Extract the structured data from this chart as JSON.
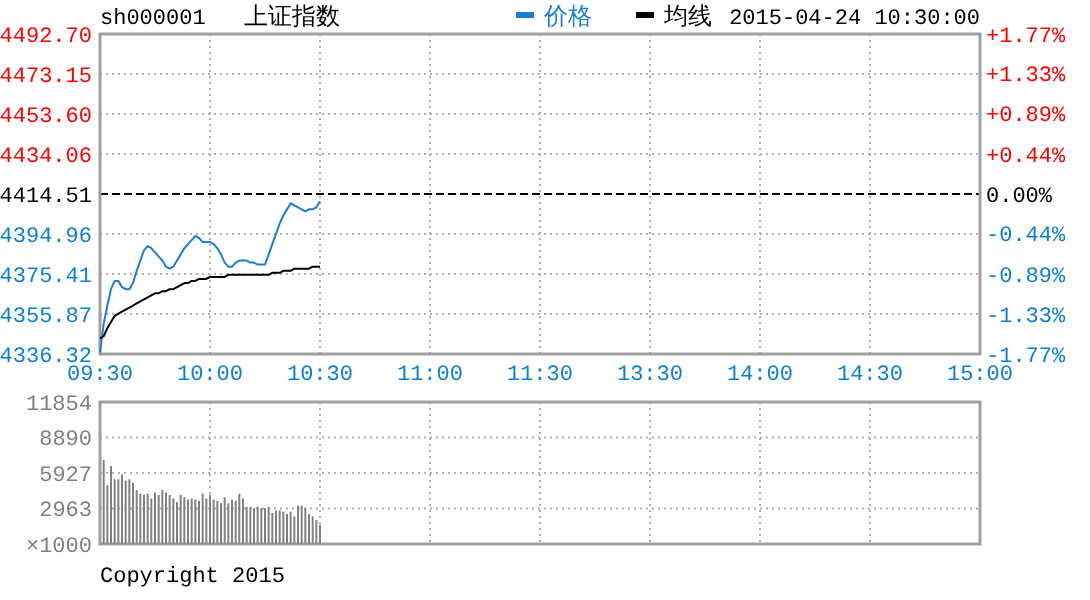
{
  "chart_data": [
    {
      "type": "line",
      "title": "上证指数",
      "subtitle": "sh000001",
      "annotations": [
        "2015-04-24 10:30:00"
      ],
      "legend": "top",
      "grid": true,
      "categories": [
        "09:30",
        null,
        null,
        null,
        null,
        null,
        null,
        null,
        null,
        null,
        null,
        null,
        null,
        null,
        null,
        null,
        null,
        null,
        null,
        null,
        null,
        null,
        null,
        null,
        null,
        null,
        null,
        null,
        null,
        null,
        "10:00",
        null,
        null,
        null,
        null,
        null,
        null,
        null,
        null,
        null,
        null,
        null,
        null,
        null,
        null,
        null,
        null,
        null,
        null,
        null,
        null,
        null,
        null,
        null,
        null,
        null,
        null,
        null,
        null,
        null,
        "10:30",
        null,
        null,
        null,
        null,
        null,
        null,
        null,
        null,
        null,
        null,
        null,
        null,
        null,
        null,
        null,
        null,
        null,
        null,
        null,
        null,
        null,
        null,
        null,
        null,
        null,
        null,
        null,
        null,
        null,
        "11:00",
        null,
        null,
        null,
        null,
        null,
        null,
        null,
        null,
        null,
        null,
        null,
        null,
        null,
        null,
        null,
        null,
        null,
        null,
        null,
        null,
        null,
        null,
        null,
        null,
        null,
        null,
        null,
        null,
        null,
        "11:30",
        null,
        null,
        null,
        null,
        null,
        null,
        null,
        null,
        null,
        null,
        null,
        null,
        null,
        null,
        null,
        null,
        null,
        null,
        null,
        null,
        null,
        null,
        null,
        null,
        null,
        null,
        null,
        null,
        null,
        "13:30",
        null,
        null,
        null,
        null,
        null,
        null,
        null,
        null,
        null,
        null,
        null,
        null,
        null,
        null,
        null,
        null,
        null,
        null,
        null,
        null,
        null,
        null,
        null,
        null,
        null,
        null,
        null,
        null,
        null,
        "14:00",
        null,
        null,
        null,
        null,
        null,
        null,
        null,
        null,
        null,
        null,
        null,
        null,
        null,
        null,
        null,
        null,
        null,
        null,
        null,
        null,
        null,
        null,
        null,
        null,
        null,
        null,
        null,
        null,
        null,
        "14:30",
        null,
        null,
        null,
        null,
        null,
        null,
        null,
        null,
        null,
        null,
        null,
        null,
        null,
        null,
        null,
        null,
        null,
        null,
        null,
        null,
        null,
        null,
        null,
        null,
        null,
        null,
        null,
        null,
        null,
        "15:00"
      ],
      "ylim": [
        4336.32,
        4492.7
      ],
      "yticks": [
        4336.32,
        4355.87,
        4375.41,
        4394.96,
        {
          "value": 4414.51,
          "label": "4414.51"
        },
        {
          "value": 4434.06,
          "label": "4434.06"
        },
        {
          "value": 4453.6,
          "label": "4453.60"
        },
        4473.15,
        {
          "value": 4492.7,
          "label": "4492.70"
        }
      ],
      "y2lim": [
        -1.77,
        1.77
      ],
      "y2ticks": [
        {
          "value": -1.77,
          "label": "-1.77%"
        },
        {
          "value": -1.33,
          "label": "-1.33%"
        },
        {
          "value": -0.89,
          "label": "-0.89%"
        },
        {
          "value": -0.44,
          "label": "-0.44%"
        },
        {
          "value": 0,
          "label": "0.00%"
        },
        {
          "value": 0.44,
          "label": "+0.44%"
        },
        {
          "value": 0.89,
          "label": "+0.89%"
        },
        {
          "value": 1.33,
          "label": "+1.33%"
        },
        {
          "value": 1.77,
          "label": "+1.77%"
        }
      ],
      "ref_lines": [
        {
          "axis": "y",
          "value": 4414.51,
          "color": "#000000",
          "line_style": "dashed"
        }
      ],
      "series": [
        {
          "name": "价格",
          "color": "#1a7fd0",
          "values": [
            4337,
            4351,
            4360,
            4368,
            4372,
            4372,
            4369,
            4368,
            4368,
            4371,
            4377,
            4382,
            4387,
            4389,
            4388,
            4386,
            4384,
            4382,
            4379,
            4378,
            4379,
            4382,
            4385,
            4388,
            4390,
            4392,
            4394,
            4393,
            4391,
            4391,
            4391,
            4390,
            4388,
            4385,
            4381,
            4379,
            4379,
            4381,
            4382,
            4382,
            4382,
            4381,
            4381,
            4380,
            4380,
            4380,
            4385,
            4390,
            4395,
            4400,
            4404,
            4407,
            4410,
            4409,
            4408,
            4407,
            4406,
            4407,
            4407,
            4408,
            4411,
            null,
            null,
            null,
            null,
            null,
            null,
            null,
            null,
            null,
            null,
            null,
            null,
            null,
            null,
            null,
            null,
            null,
            null,
            null,
            null,
            null,
            null,
            null,
            null,
            null,
            null,
            null,
            null,
            null,
            null,
            null,
            null,
            null,
            null,
            null,
            null,
            null,
            null,
            null,
            null,
            null,
            null,
            null,
            null,
            null,
            null,
            null,
            null,
            null,
            null,
            null,
            null,
            null,
            null,
            null,
            null,
            null,
            null,
            null,
            null,
            null,
            null,
            null,
            null,
            null,
            null,
            null,
            null,
            null,
            null,
            null,
            null,
            null,
            null,
            null,
            null,
            null,
            null,
            null,
            null,
            null,
            null,
            null,
            null,
            null,
            null,
            null,
            null,
            null,
            null,
            null,
            null,
            null,
            null,
            null,
            null,
            null,
            null,
            null,
            null,
            null,
            null,
            null,
            null,
            null,
            null,
            null,
            null,
            null,
            null,
            null,
            null,
            null,
            null,
            null,
            null,
            null,
            null,
            null,
            null,
            null,
            null,
            null,
            null,
            null,
            null,
            null,
            null,
            null,
            null,
            null,
            null,
            null,
            null,
            null,
            null,
            null,
            null,
            null,
            null,
            null,
            null,
            null,
            null,
            null,
            null,
            null,
            null,
            null,
            null,
            null,
            null,
            null,
            null,
            null,
            null,
            null,
            null,
            null,
            null,
            null,
            null,
            null,
            null,
            null,
            null,
            null,
            null,
            null,
            null,
            null,
            null,
            null,
            null,
            null,
            null,
            null,
            null,
            null,
            null
          ]
        },
        {
          "name": "均线",
          "color": "#000000",
          "values": [
            4344,
            4345,
            4349,
            4352,
            4355,
            4356,
            4357,
            4358,
            4359,
            4360,
            4361,
            4362,
            4363,
            4364,
            4365,
            4366,
            4366,
            4367,
            4367,
            4368,
            4368,
            4369,
            4370,
            4371,
            4371,
            4372,
            4372,
            4373,
            4373,
            4373,
            4374,
            4374,
            4374,
            4374,
            4374,
            4375,
            4375,
            4375,
            4375,
            4375,
            4375,
            4375,
            4375,
            4375,
            4375,
            4375,
            4375,
            4376,
            4376,
            4376,
            4377,
            4377,
            4377,
            4378,
            4378,
            4378,
            4378,
            4378,
            4379,
            4379,
            4379,
            null,
            null,
            null,
            null,
            null,
            null,
            null,
            null,
            null,
            null,
            null,
            null,
            null,
            null,
            null,
            null,
            null,
            null,
            null,
            null,
            null,
            null,
            null,
            null,
            null,
            null,
            null,
            null,
            null,
            null,
            null,
            null,
            null,
            null,
            null,
            null,
            null,
            null,
            null,
            null,
            null,
            null,
            null,
            null,
            null,
            null,
            null,
            null,
            null,
            null,
            null,
            null,
            null,
            null,
            null,
            null,
            null,
            null,
            null,
            null,
            null,
            null,
            null,
            null,
            null,
            null,
            null,
            null,
            null,
            null,
            null,
            null,
            null,
            null,
            null,
            null,
            null,
            null,
            null,
            null,
            null,
            null,
            null,
            null,
            null,
            null,
            null,
            null,
            null,
            null,
            null,
            null,
            null,
            null,
            null,
            null,
            null,
            null,
            null,
            null,
            null,
            null,
            null,
            null,
            null,
            null,
            null,
            null,
            null,
            null,
            null,
            null,
            null,
            null,
            null,
            null,
            null,
            null,
            null,
            null,
            null,
            null,
            null,
            null,
            null,
            null,
            null,
            null,
            null,
            null,
            null,
            null,
            null,
            null,
            null,
            null,
            null,
            null,
            null,
            null,
            null,
            null,
            null,
            null,
            null,
            null,
            null,
            null,
            null,
            null,
            null,
            null,
            null,
            null,
            null,
            null,
            null,
            null,
            null,
            null,
            null,
            null,
            null,
            null,
            null,
            null,
            null,
            null,
            null,
            null,
            null,
            null,
            null,
            null,
            null,
            null,
            null,
            null,
            null,
            null
          ]
        }
      ]
    },
    {
      "type": "bar",
      "grid": true,
      "tick_labels": "y",
      "ylabel": "×1000",
      "annotations": [
        "Copyright 2015"
      ],
      "categories": [
        null,
        null,
        null,
        null,
        null,
        null,
        null,
        null,
        null,
        null,
        null,
        null,
        null,
        null,
        null,
        null,
        null,
        null,
        null,
        null,
        null,
        null,
        null,
        null,
        null,
        null,
        null,
        null,
        null,
        null,
        null,
        null,
        null,
        null,
        null,
        null,
        null,
        null,
        null,
        null,
        null,
        null,
        null,
        null,
        null,
        null,
        null,
        null,
        null,
        null,
        null,
        null,
        null,
        null,
        null,
        null,
        null,
        null,
        null,
        null,
        null,
        null,
        null,
        null,
        null,
        null,
        null,
        null,
        null,
        null,
        null,
        null,
        null,
        null,
        null,
        null,
        null,
        null,
        null,
        null,
        null,
        null,
        null,
        null,
        null,
        null,
        null,
        null,
        null,
        null,
        null,
        null,
        null,
        null,
        null,
        null,
        null,
        null,
        null,
        null,
        null,
        null,
        null,
        null,
        null,
        null,
        null,
        null,
        null,
        null,
        null,
        null,
        null,
        null,
        null,
        null,
        null,
        null,
        null,
        null,
        null,
        null,
        null,
        null,
        null,
        null,
        null,
        null,
        null,
        null,
        null,
        null,
        null,
        null,
        null,
        null,
        null,
        null,
        null,
        null,
        null,
        null,
        null,
        null,
        null,
        null,
        null,
        null,
        null,
        null,
        null,
        null,
        null,
        null,
        null,
        null,
        null,
        null,
        null,
        null,
        null,
        null,
        null,
        null,
        null,
        null,
        null,
        null,
        null,
        null,
        null,
        null,
        null,
        null,
        null,
        null,
        null,
        null,
        null,
        null,
        null,
        null,
        null,
        null,
        null,
        null,
        null,
        null,
        null,
        null,
        null,
        null,
        null,
        null,
        null,
        null,
        null,
        null,
        null,
        null,
        null,
        null,
        null,
        null,
        null,
        null,
        null,
        null,
        null,
        null,
        null,
        null,
        null,
        null,
        null,
        null,
        null,
        null,
        null,
        null,
        null,
        null,
        null,
        null,
        null,
        null,
        null,
        null,
        null,
        null,
        null,
        null,
        null,
        null,
        null,
        null,
        null,
        null,
        null,
        null,
        null
      ],
      "ylim": [
        0,
        11854
      ],
      "yticks": [
        {
          "value": 0,
          "label": null
        },
        2963,
        5927,
        8890,
        11854
      ],
      "color": "#808080",
      "values": [
        null,
        7000,
        4900,
        6500,
        5400,
        5400,
        5800,
        5300,
        5400,
        5100,
        4500,
        4200,
        4100,
        4200,
        3800,
        4300,
        4100,
        4500,
        4300,
        4100,
        3800,
        3500,
        4100,
        3900,
        3700,
        3800,
        3700,
        3600,
        4200,
        3800,
        4100,
        3700,
        3600,
        3400,
        3900,
        3400,
        3700,
        3600,
        4200,
        3800,
        3100,
        3100,
        3000,
        3100,
        3000,
        3000,
        3100,
        2600,
        2800,
        2800,
        2700,
        2500,
        2700,
        2300,
        3200,
        3200,
        3000,
        2500,
        2300,
        2000,
        1600,
        null,
        null,
        null,
        null,
        null,
        null,
        null,
        null,
        null,
        null,
        null,
        null,
        null,
        null,
        null,
        null,
        null,
        null,
        null,
        null,
        null,
        null,
        null,
        null,
        null,
        null,
        null,
        null,
        null,
        null,
        null,
        null,
        null,
        null,
        null,
        null,
        null,
        null,
        null,
        null,
        null,
        null,
        null,
        null,
        null,
        null,
        null,
        null,
        null,
        null,
        null,
        null,
        null,
        null,
        null,
        null,
        null,
        null,
        null,
        null,
        null,
        null,
        null,
        null,
        null,
        null,
        null,
        null,
        null,
        null,
        null,
        null,
        null,
        null,
        null,
        null,
        null,
        null,
        null,
        null,
        null,
        null,
        null,
        null,
        null,
        null,
        null,
        null,
        null,
        null,
        null,
        null,
        null,
        null,
        null,
        null,
        null,
        null,
        null,
        null,
        null,
        null,
        null,
        null,
        null,
        null,
        null,
        null,
        null,
        null,
        null,
        null,
        null,
        null,
        null,
        null,
        null,
        null,
        null,
        null,
        null,
        null,
        null,
        null,
        null,
        null,
        null,
        null,
        null,
        null,
        null,
        null,
        null,
        null,
        null,
        null,
        null,
        null,
        null,
        null,
        null,
        null,
        null,
        null,
        null,
        null,
        null,
        null,
        null,
        null,
        null,
        null,
        null,
        null,
        null,
        null,
        null,
        null,
        null,
        null,
        null,
        null,
        null,
        null,
        null,
        null,
        null,
        null,
        null,
        null,
        null,
        null,
        null,
        null,
        null,
        null,
        null,
        null,
        null,
        null
      ]
    }
  ]
}
